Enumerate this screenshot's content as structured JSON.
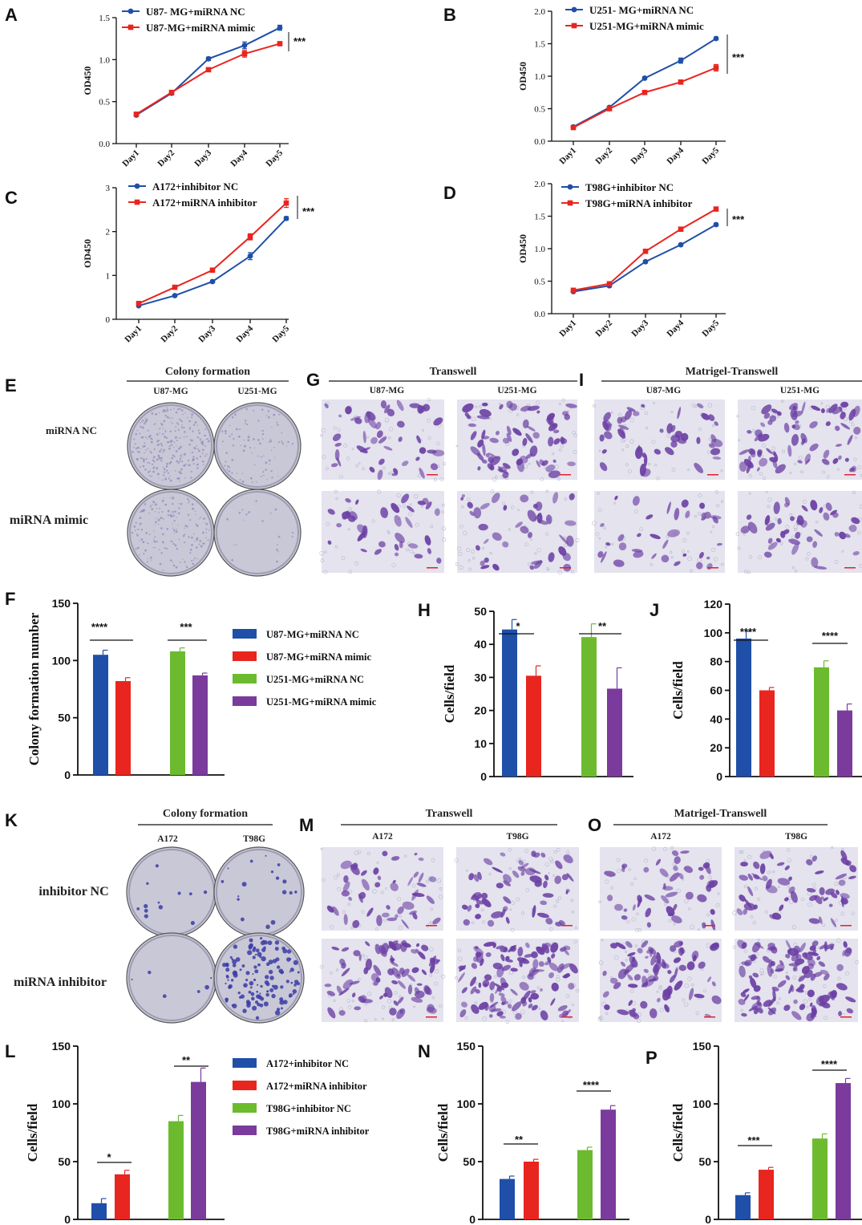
{
  "colors": {
    "blue": "#1f4fa8",
    "red": "#e8251f",
    "green": "#6cbb2e",
    "purple": "#7a3b9c",
    "stain": "#6b3fa3",
    "plate": "#c9c8d6"
  },
  "chart_data": [
    {
      "id": "A",
      "type": "line",
      "panel_letter": "A",
      "x": [
        "Day1",
        "Day2",
        "Day3",
        "Day4",
        "Day5"
      ],
      "ylabel": "OD450",
      "ylim": [
        0,
        1.5
      ],
      "yticks": [
        "0.0",
        "0.5",
        "1.0",
        "1.5"
      ],
      "series": [
        {
          "name": "U87- MG+miRNA NC",
          "color": "blue",
          "values": [
            0.34,
            0.6,
            1.01,
            1.17,
            1.38
          ],
          "err": [
            0.01,
            0.02,
            0.02,
            0.04,
            0.03
          ]
        },
        {
          "name": "U87-MG+miRNA mimic",
          "color": "red",
          "values": [
            0.35,
            0.61,
            0.88,
            1.07,
            1.19
          ],
          "err": [
            0.01,
            0.02,
            0.02,
            0.04,
            0.02
          ]
        }
      ],
      "significance": "***"
    },
    {
      "id": "B",
      "type": "line",
      "panel_letter": "B",
      "x": [
        "Day1",
        "Day2",
        "Day3",
        "Day4",
        "Day5"
      ],
      "ylabel": "OD450",
      "ylim": [
        0,
        2.0
      ],
      "yticks": [
        "0.0",
        "0.5",
        "1.0",
        "1.5",
        "2.0"
      ],
      "series": [
        {
          "name": "U251- MG+miRNA NC",
          "color": "blue",
          "values": [
            0.22,
            0.52,
            0.97,
            1.24,
            1.58
          ],
          "err": [
            0.01,
            0.02,
            0.02,
            0.04,
            0.02
          ]
        },
        {
          "name": "U251-MG+miRNA mimic",
          "color": "red",
          "values": [
            0.21,
            0.5,
            0.75,
            0.91,
            1.13
          ],
          "err": [
            0.01,
            0.02,
            0.02,
            0.03,
            0.05
          ]
        }
      ],
      "significance": "***"
    },
    {
      "id": "C",
      "type": "line",
      "panel_letter": "C",
      "x": [
        "Day1",
        "Day2",
        "Day3",
        "Day4",
        "Day5"
      ],
      "ylabel": "OD450",
      "ylim": [
        0,
        3
      ],
      "yticks": [
        "0",
        "1",
        "2",
        "3"
      ],
      "series": [
        {
          "name": "A172+inhibitor NC",
          "color": "blue",
          "values": [
            0.31,
            0.54,
            0.86,
            1.44,
            2.3
          ],
          "err": [
            0.02,
            0.02,
            0.03,
            0.08,
            0.04
          ]
        },
        {
          "name": "A172+miRNA inhibitor",
          "color": "red",
          "values": [
            0.36,
            0.73,
            1.12,
            1.88,
            2.65
          ],
          "err": [
            0.02,
            0.03,
            0.04,
            0.07,
            0.1
          ]
        }
      ],
      "significance": "***"
    },
    {
      "id": "D",
      "type": "line",
      "panel_letter": "D",
      "x": [
        "Day1",
        "Day2",
        "Day3",
        "Day4",
        "Day5"
      ],
      "ylabel": "OD450",
      "ylim": [
        0,
        2.0
      ],
      "yticks": [
        "0.0",
        "0.5",
        "1.0",
        "1.5",
        "2.0"
      ],
      "series": [
        {
          "name": "T98G+inhibitor NC",
          "color": "blue",
          "values": [
            0.34,
            0.43,
            0.8,
            1.06,
            1.37
          ],
          "err": [
            0.01,
            0.02,
            0.02,
            0.02,
            0.02
          ]
        },
        {
          "name": "T98G+miRNA inhibitor",
          "color": "red",
          "values": [
            0.36,
            0.46,
            0.96,
            1.3,
            1.61
          ],
          "err": [
            0.01,
            0.02,
            0.02,
            0.03,
            0.02
          ]
        }
      ],
      "significance": "***"
    },
    {
      "id": "F",
      "type": "bar",
      "panel_letter": "F",
      "ylabel": "Colony formation number",
      "ylim": [
        0,
        150
      ],
      "yticks": [
        "0",
        "50",
        "100",
        "150"
      ],
      "series": [
        {
          "name": "U87-MG+miRNA NC",
          "color": "blue",
          "value": 105,
          "err": 4
        },
        {
          "name": "U87-MG+miRNA mimic",
          "color": "red",
          "value": 82,
          "err": 3
        },
        {
          "name": "U251-MG+miRNA NC",
          "color": "green",
          "value": 108,
          "err": 3
        },
        {
          "name": "U251-MG+miRNA mimic",
          "color": "purple",
          "value": 87,
          "err": 2
        }
      ],
      "significance": [
        "****",
        "***"
      ]
    },
    {
      "id": "H",
      "type": "bar",
      "panel_letter": "H",
      "ylabel": "Cells/field",
      "ylim": [
        0,
        50
      ],
      "yticks": [
        "0",
        "10",
        "20",
        "30",
        "40",
        "50"
      ],
      "series": [
        {
          "color": "blue",
          "value": 44.5,
          "err": 3
        },
        {
          "color": "red",
          "value": 30.5,
          "err": 3
        },
        {
          "color": "green",
          "value": 42.2,
          "err": 4
        },
        {
          "color": "purple",
          "value": 26.6,
          "err": 6.3
        }
      ],
      "significance": [
        "*",
        "**"
      ]
    },
    {
      "id": "J",
      "type": "bar",
      "panel_letter": "J",
      "ylabel": "Cells/field",
      "ylim": [
        0,
        120
      ],
      "yticks": [
        "0",
        "20",
        "40",
        "60",
        "80",
        "100",
        "120"
      ],
      "series": [
        {
          "color": "blue",
          "value": 96,
          "err": 5
        },
        {
          "color": "red",
          "value": 60,
          "err": 2
        },
        {
          "color": "green",
          "value": 76,
          "err": 4.5
        },
        {
          "color": "purple",
          "value": 46,
          "err": 4.5
        }
      ],
      "significance": [
        "****",
        "****"
      ]
    },
    {
      "id": "L",
      "type": "bar",
      "panel_letter": "L",
      "ylabel": "Cells/field",
      "ylim": [
        0,
        150
      ],
      "yticks": [
        "0",
        "50",
        "100",
        "150"
      ],
      "series": [
        {
          "name": "A172+inhibitor NC",
          "color": "blue",
          "value": 14,
          "err": 4
        },
        {
          "name": "A172+miRNA inhibitor",
          "color": "red",
          "value": 39,
          "err": 3.5
        },
        {
          "name": "T98G+inhibitor NC",
          "color": "green",
          "value": 85,
          "err": 5
        },
        {
          "name": "T98G+miRNA inhibitor",
          "color": "purple",
          "value": 119,
          "err": 12
        }
      ],
      "significance": [
        "*",
        "**"
      ]
    },
    {
      "id": "N",
      "type": "bar",
      "panel_letter": "N",
      "ylabel": "Cells/field",
      "ylim": [
        0,
        150
      ],
      "yticks": [
        "0",
        "50",
        "100",
        "150"
      ],
      "series": [
        {
          "color": "blue",
          "value": 35,
          "err": 2.5
        },
        {
          "color": "red",
          "value": 50,
          "err": 2
        },
        {
          "color": "green",
          "value": 60,
          "err": 2.5
        },
        {
          "color": "purple",
          "value": 95,
          "err": 3.5
        }
      ],
      "significance": [
        "**",
        "****"
      ]
    },
    {
      "id": "P",
      "type": "bar",
      "panel_letter": "P",
      "ylabel": "Cells/field",
      "ylim": [
        0,
        150
      ],
      "yticks": [
        "0",
        "50",
        "100",
        "150"
      ],
      "series": [
        {
          "color": "blue",
          "value": 21,
          "err": 2
        },
        {
          "color": "red",
          "value": 43,
          "err": 2
        },
        {
          "color": "green",
          "value": 70,
          "err": 4
        },
        {
          "color": "purple",
          "value": 118,
          "err": 4
        }
      ],
      "significance": [
        "***",
        "****"
      ]
    }
  ],
  "image_panels": [
    {
      "id": "E",
      "panel_letter": "E",
      "kind": "plates",
      "header": "Colony formation",
      "columns": [
        "U87-MG",
        "U251-MG"
      ],
      "rows": [
        "miRNA NC",
        "miRNA mimic"
      ]
    },
    {
      "id": "G",
      "panel_letter": "G",
      "kind": "micrographs",
      "header": "Transwell",
      "columns": [
        "U87-MG",
        "U251-MG"
      ]
    },
    {
      "id": "I",
      "panel_letter": "I",
      "kind": "micrographs",
      "header": "Matrigel-Transwell",
      "columns": [
        "U87-MG",
        "U251-MG"
      ]
    },
    {
      "id": "K",
      "panel_letter": "K",
      "kind": "plates",
      "header": "Colony formation",
      "columns": [
        "A172",
        "T98G"
      ],
      "rows": [
        "inhibitor NC",
        "miRNA inhibitor"
      ]
    },
    {
      "id": "M",
      "panel_letter": "M",
      "kind": "micrographs",
      "header": "Transwell",
      "columns": [
        "A172",
        "T98G"
      ]
    },
    {
      "id": "O",
      "panel_letter": "O",
      "kind": "micrographs",
      "header": "Matrigel-Transwell",
      "columns": [
        "A172",
        "T98G"
      ]
    }
  ]
}
